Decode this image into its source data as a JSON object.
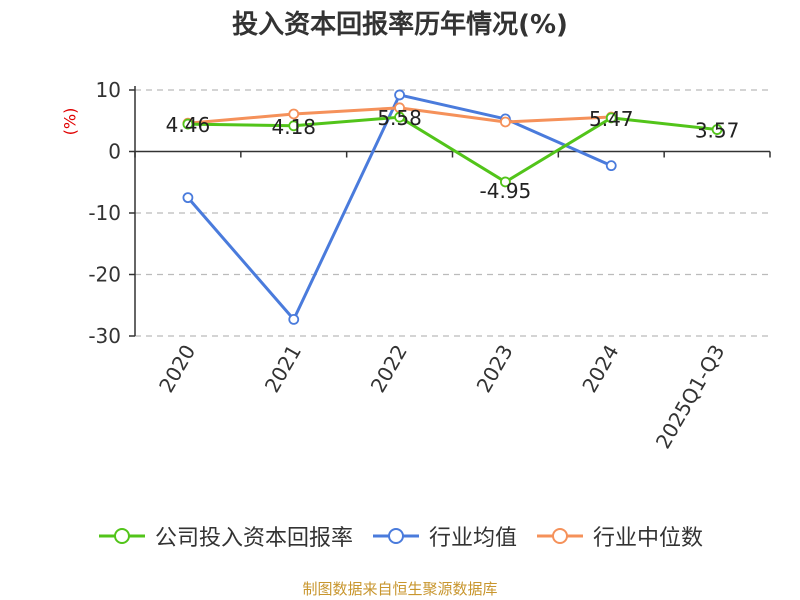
{
  "title": "投入资本回报率历年情况(%)",
  "unit_label": "(%)",
  "source": "制图数据来自恒生聚源数据库",
  "colors": {
    "company": "#52c41a",
    "industry_avg": "#4a7bdc",
    "industry_median": "#f5915a",
    "unit": "#e00000",
    "source": "#c8962e"
  },
  "chart_data": {
    "type": "line",
    "title": "投入资本回报率历年情况(%)",
    "ylabel": "(%)",
    "ylim": [
      -30,
      10
    ],
    "yticks": [
      10,
      0,
      -10,
      -20,
      -30
    ],
    "grid": true,
    "legend_position": "bottom",
    "categories": [
      "2020",
      "2021",
      "2022",
      "2023",
      "2024",
      "2025Q1-Q3"
    ],
    "series": [
      {
        "name": "公司投入资本回报率",
        "values": [
          4.46,
          4.18,
          5.58,
          -4.95,
          5.47,
          3.57
        ],
        "labels": [
          "4.46",
          "4.18",
          "5.58",
          "-4.95",
          "5.47",
          "3.57"
        ]
      },
      {
        "name": "行业均值",
        "values": [
          -7.5,
          -27.3,
          9.2,
          5.3,
          -2.3,
          null
        ]
      },
      {
        "name": "行业中位数",
        "values": [
          4.6,
          6.1,
          7.1,
          4.8,
          5.6,
          null
        ]
      }
    ]
  }
}
